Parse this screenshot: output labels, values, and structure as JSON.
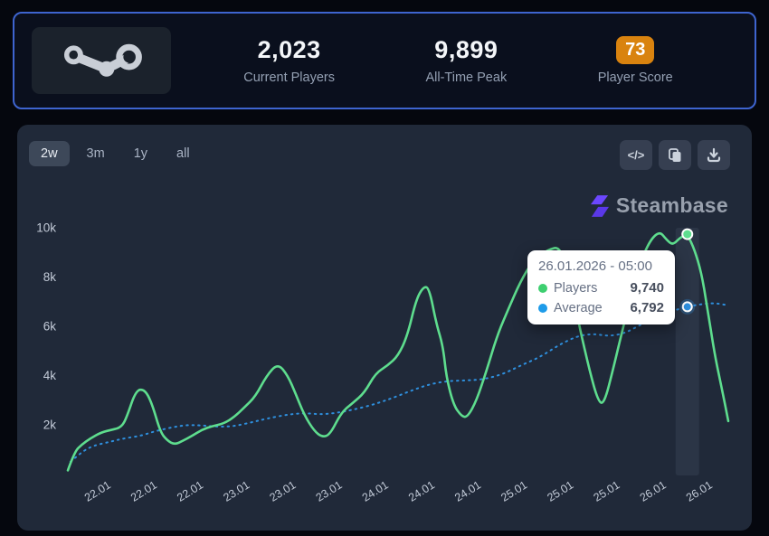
{
  "header": {
    "current_players": {
      "value": "2,023",
      "label": "Current Players"
    },
    "all_time_peak": {
      "value": "9,899",
      "label": "All-Time Peak"
    },
    "player_score": {
      "value": "73",
      "label": "Player Score",
      "badge_color": "#d9830f"
    }
  },
  "toolbar": {
    "ranges": [
      {
        "label": "2w",
        "active": true
      },
      {
        "label": "3m",
        "active": false
      },
      {
        "label": "1y",
        "active": false
      },
      {
        "label": "all",
        "active": false
      }
    ],
    "icons": [
      {
        "name": "embed-code-icon",
        "glyph": "</>"
      },
      {
        "name": "copy-icon"
      },
      {
        "name": "download-icon"
      }
    ]
  },
  "watermark": {
    "text": "Steambase",
    "logo_color": "#6c47ff"
  },
  "tooltip": {
    "title": "26.01.2026 - 05:00",
    "rows": [
      {
        "label": "Players",
        "value": "9,740",
        "color": "#3ecf70"
      },
      {
        "label": "Average",
        "value": "6,792",
        "color": "#1e9be9"
      }
    ]
  },
  "chart_data": {
    "type": "line",
    "x_labels": [
      "22.01",
      "22.01",
      "22.01",
      "23.01",
      "23.01",
      "23.01",
      "24.01",
      "24.01",
      "24.01",
      "25.01",
      "25.01",
      "25.01",
      "26.01",
      "26.01"
    ],
    "y_ticks": [
      {
        "label": "2k",
        "value": 2000
      },
      {
        "label": "4k",
        "value": 4000
      },
      {
        "label": "6k",
        "value": 6000
      },
      {
        "label": "8k",
        "value": 8000
      },
      {
        "label": "10k",
        "value": 10000
      }
    ],
    "ylim": [
      0,
      10600
    ],
    "grid": false,
    "legend": "tooltip-only",
    "series": [
      {
        "name": "Players",
        "color": "#5edd8e",
        "style": "solid",
        "points": [
          [
            0.0,
            150
          ],
          [
            0.01,
            900
          ],
          [
            0.021,
            1200
          ],
          [
            0.034,
            1450
          ],
          [
            0.051,
            1700
          ],
          [
            0.067,
            1800
          ],
          [
            0.081,
            1900
          ],
          [
            0.089,
            2300
          ],
          [
            0.103,
            3400
          ],
          [
            0.116,
            3450
          ],
          [
            0.127,
            2900
          ],
          [
            0.14,
            1700
          ],
          [
            0.151,
            1350
          ],
          [
            0.162,
            1200
          ],
          [
            0.174,
            1350
          ],
          [
            0.188,
            1550
          ],
          [
            0.203,
            1800
          ],
          [
            0.219,
            1950
          ],
          [
            0.236,
            2050
          ],
          [
            0.251,
            2300
          ],
          [
            0.267,
            2700
          ],
          [
            0.284,
            3150
          ],
          [
            0.301,
            4000
          ],
          [
            0.318,
            4500
          ],
          [
            0.333,
            4000
          ],
          [
            0.345,
            3250
          ],
          [
            0.358,
            2400
          ],
          [
            0.373,
            1750
          ],
          [
            0.385,
            1500
          ],
          [
            0.397,
            1600
          ],
          [
            0.414,
            2500
          ],
          [
            0.432,
            2900
          ],
          [
            0.449,
            3300
          ],
          [
            0.466,
            4100
          ],
          [
            0.484,
            4400
          ],
          [
            0.5,
            4800
          ],
          [
            0.514,
            5600
          ],
          [
            0.527,
            7050
          ],
          [
            0.538,
            7600
          ],
          [
            0.547,
            7580
          ],
          [
            0.558,
            6100
          ],
          [
            0.568,
            5200
          ],
          [
            0.573,
            3950
          ],
          [
            0.584,
            2800
          ],
          [
            0.596,
            2350
          ],
          [
            0.605,
            2300
          ],
          [
            0.619,
            3000
          ],
          [
            0.634,
            4200
          ],
          [
            0.651,
            5700
          ],
          [
            0.667,
            6700
          ],
          [
            0.685,
            7800
          ],
          [
            0.705,
            8700
          ],
          [
            0.726,
            9100
          ],
          [
            0.747,
            9250
          ],
          [
            0.763,
            7500
          ],
          [
            0.777,
            5700
          ],
          [
            0.79,
            4200
          ],
          [
            0.803,
            2950
          ],
          [
            0.812,
            2850
          ],
          [
            0.826,
            4300
          ],
          [
            0.842,
            6100
          ],
          [
            0.86,
            8000
          ],
          [
            0.877,
            9300
          ],
          [
            0.895,
            9890
          ],
          [
            0.907,
            9500
          ],
          [
            0.916,
            9300
          ],
          [
            0.927,
            9600
          ],
          [
            0.938,
            9740
          ],
          [
            0.949,
            9100
          ],
          [
            0.959,
            8200
          ],
          [
            0.968,
            6800
          ],
          [
            0.979,
            4900
          ],
          [
            0.99,
            3500
          ],
          [
            1.0,
            2150
          ]
        ]
      },
      {
        "name": "Average",
        "color": "#2e8fdd",
        "style": "dashed",
        "points": [
          [
            0.004,
            500
          ],
          [
            0.021,
            900
          ],
          [
            0.038,
            1150
          ],
          [
            0.062,
            1300
          ],
          [
            0.085,
            1450
          ],
          [
            0.11,
            1550
          ],
          [
            0.133,
            1750
          ],
          [
            0.158,
            1900
          ],
          [
            0.181,
            2000
          ],
          [
            0.205,
            1970
          ],
          [
            0.23,
            1920
          ],
          [
            0.253,
            1950
          ],
          [
            0.278,
            2100
          ],
          [
            0.301,
            2250
          ],
          [
            0.329,
            2400
          ],
          [
            0.356,
            2480
          ],
          [
            0.384,
            2420
          ],
          [
            0.411,
            2500
          ],
          [
            0.438,
            2650
          ],
          [
            0.466,
            2850
          ],
          [
            0.493,
            3100
          ],
          [
            0.521,
            3400
          ],
          [
            0.548,
            3650
          ],
          [
            0.575,
            3780
          ],
          [
            0.603,
            3800
          ],
          [
            0.63,
            3850
          ],
          [
            0.658,
            4050
          ],
          [
            0.685,
            4400
          ],
          [
            0.715,
            4750
          ],
          [
            0.744,
            5250
          ],
          [
            0.771,
            5600
          ],
          [
            0.795,
            5700
          ],
          [
            0.818,
            5600
          ],
          [
            0.842,
            5700
          ],
          [
            0.87,
            6100
          ],
          [
            0.897,
            6450
          ],
          [
            0.918,
            6650
          ],
          [
            0.938,
            6792
          ],
          [
            0.959,
            6900
          ],
          [
            0.979,
            6950
          ],
          [
            1.0,
            6850
          ]
        ]
      }
    ],
    "highlight": {
      "x_frac": 0.938,
      "players": 9740,
      "average": 6792
    }
  }
}
